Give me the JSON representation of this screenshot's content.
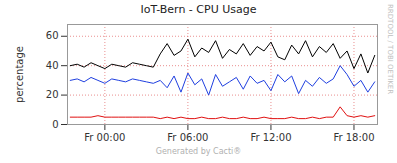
{
  "chart_data": {
    "type": "line",
    "title": "IoT-Bern - CPU Usage",
    "y_label": "percentage",
    "side_label": "RRDTOOL / TOBI OETIKER",
    "footer": "Generated by Cacti®",
    "x": [
      -2.5,
      -2,
      -1.5,
      -1,
      -0.5,
      0,
      0.5,
      1,
      1.5,
      2,
      2.5,
      3,
      3.5,
      4,
      4.5,
      5,
      5.5,
      6,
      6.5,
      7,
      7.5,
      8,
      8.5,
      9,
      9.5,
      10,
      10.5,
      11,
      11.5,
      12,
      12.5,
      13,
      13.5,
      14,
      14.5,
      15,
      15.5,
      16,
      16.5,
      17,
      17.5,
      18,
      18.5,
      19,
      19.5
    ],
    "series": [
      {
        "color": "#000000",
        "values": [
          40,
          41,
          39,
          42,
          40,
          38,
          41,
          40,
          39,
          42,
          41,
          40,
          39,
          48,
          55,
          47,
          50,
          58,
          46,
          52,
          49,
          57,
          45,
          51,
          48,
          55,
          47,
          53,
          50,
          56,
          46,
          44,
          54,
          48,
          57,
          46,
          53,
          49,
          55,
          45,
          50,
          38,
          48,
          35,
          47
        ]
      },
      {
        "color": "#1f3fe0",
        "values": [
          30,
          31,
          29,
          32,
          30,
          28,
          31,
          30,
          29,
          31,
          30,
          29,
          28,
          30,
          25,
          33,
          22,
          35,
          27,
          31,
          20,
          34,
          26,
          29,
          32,
          24,
          33,
          28,
          30,
          23,
          34,
          29,
          33,
          21,
          30,
          26,
          32,
          28,
          31,
          40,
          34,
          26,
          30,
          22,
          29
        ]
      },
      {
        "color": "#e01010",
        "values": [
          5,
          5,
          5,
          5,
          6,
          5,
          5,
          5,
          5,
          5,
          5,
          5,
          5,
          4,
          5,
          4,
          5,
          4,
          4,
          5,
          4,
          4,
          5,
          4,
          4,
          5,
          4,
          4,
          5,
          4,
          4,
          4,
          5,
          4,
          4,
          5,
          4,
          5,
          5,
          12,
          6,
          5,
          6,
          5,
          6
        ]
      }
    ],
    "xlim": [
      -2.7,
      19.7
    ],
    "xticks": [
      {
        "value": 0,
        "label": "Fr 00:00"
      },
      {
        "value": 6,
        "label": "Fr 06:00"
      },
      {
        "value": 12,
        "label": "Fr 12:00"
      },
      {
        "value": 18,
        "label": "Fr 18:00"
      }
    ],
    "ylim": [
      0,
      68
    ],
    "yticks": [
      0,
      20,
      40,
      60
    ],
    "grid": true
  }
}
